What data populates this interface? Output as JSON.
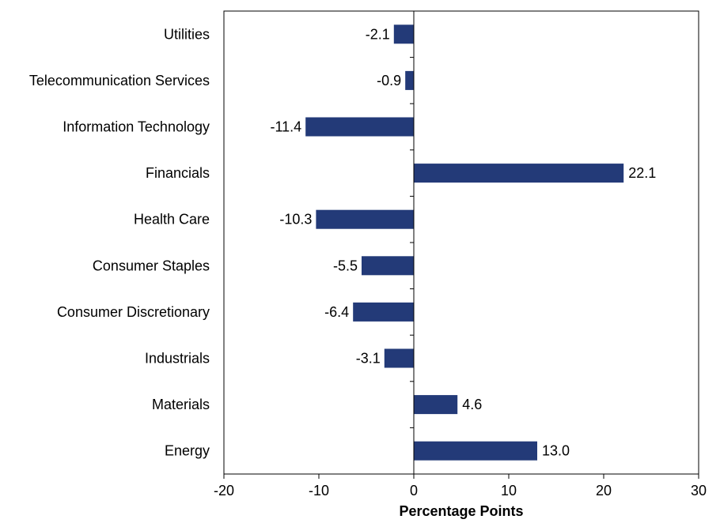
{
  "chart_data": {
    "type": "bar",
    "orientation": "horizontal",
    "categories": [
      "Utilities",
      "Telecommunication Services",
      "Information Technology",
      "Financials",
      "Health Care",
      "Consumer Staples",
      "Consumer Discretionary",
      "Industrials",
      "Materials",
      "Energy"
    ],
    "values": [
      -2.1,
      -0.9,
      -11.4,
      22.1,
      -10.3,
      -5.5,
      -6.4,
      -3.1,
      4.6,
      13.0
    ],
    "value_labels": [
      "-2.1",
      "-0.9",
      "-11.4",
      "22.1",
      "-10.3",
      "-5.5",
      "-6.4",
      "-3.1",
      "4.6",
      "13.0"
    ],
    "xlabel": "Percentage Points",
    "xlim": [
      -20,
      30
    ],
    "xticks": [
      -20,
      -10,
      0,
      10,
      20,
      30
    ],
    "xtick_labels": [
      "-20",
      "-10",
      "0",
      "10",
      "20",
      "30"
    ],
    "grid": false,
    "legend": false,
    "bar_color": "#233A78"
  }
}
